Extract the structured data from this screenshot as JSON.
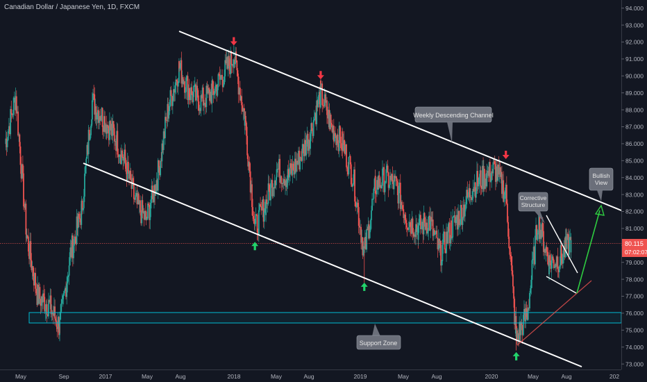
{
  "header": {
    "symbol_title": "Canadian Dollar / Japanese Yen, 1D, FXCM"
  },
  "colors": {
    "background": "#131722",
    "up_candle": "#26a69a",
    "down_candle": "#ef5350",
    "price_line": "#ef5350",
    "channel_lines": "#ffffff",
    "support_zone": "#00bcd4",
    "bullish_arrow": "#2ecc40",
    "callout_bg": "#6b6f7a",
    "callout_text": "#e6e6e6",
    "axis_text": "#b2b5be"
  },
  "price_tag": {
    "price": "80.115",
    "countdown": "07:02:07"
  },
  "annotations": {
    "weekly_channel": "Weekly Descending Channel",
    "corrective_line1": "Corrective",
    "corrective_line2": "Structure",
    "bullish_line1": "Bullish",
    "bullish_line2": "View",
    "support_zone": "Support Zone"
  },
  "chart_data": {
    "type": "candlestick",
    "title": "Canadian Dollar / Japanese Yen, 1D, FXCM",
    "current_price": 80.115,
    "y_range": [
      72.6,
      94.6
    ],
    "y_ticks": [
      "94.000",
      "93.000",
      "92.000",
      "91.000",
      "90.000",
      "89.000",
      "88.000",
      "87.000",
      "86.000",
      "85.000",
      "84.000",
      "83.000",
      "82.000",
      "81.000",
      "80.000",
      "79.000",
      "78.000",
      "77.000",
      "76.000",
      "75.000",
      "74.000",
      "73.000"
    ],
    "x_ticks": [
      "May",
      "Sep",
      "2017",
      "May",
      "Aug",
      "2018",
      "May",
      "Aug",
      "2019",
      "May",
      "Aug",
      "2020",
      "May",
      "Aug",
      "202"
    ],
    "price_path": [
      [
        "2016-04",
        86.0
      ],
      [
        "2016-05",
        88.8
      ],
      [
        "2016-06",
        80.5
      ],
      [
        "2016-07",
        77.0
      ],
      [
        "2016-08",
        76.5
      ],
      [
        "2016-09",
        75.2
      ],
      [
        "2016-10",
        79.5
      ],
      [
        "2016-11",
        82.0
      ],
      [
        "2016-12",
        88.5
      ],
      [
        "2017-01",
        87.5
      ],
      [
        "2017-02",
        86.5
      ],
      [
        "2017-03",
        85.0
      ],
      [
        "2017-04",
        82.5
      ],
      [
        "2017-05",
        81.5
      ],
      [
        "2017-06",
        84.0
      ],
      [
        "2017-07",
        88.0
      ],
      [
        "2017-08",
        90.5
      ],
      [
        "2017-09",
        89.0
      ],
      [
        "2017-10",
        88.5
      ],
      [
        "2017-11",
        89.0
      ],
      [
        "2017-12",
        90.0
      ],
      [
        "2018-01",
        91.2
      ],
      [
        "2018-02",
        87.5
      ],
      [
        "2018-03",
        81.0
      ],
      [
        "2018-04",
        82.5
      ],
      [
        "2018-05",
        84.5
      ],
      [
        "2018-06",
        84.0
      ],
      [
        "2018-07",
        85.0
      ],
      [
        "2018-08",
        86.5
      ],
      [
        "2018-09",
        89.0
      ],
      [
        "2018-10",
        87.0
      ],
      [
        "2018-11",
        86.0
      ],
      [
        "2018-12",
        84.0
      ],
      [
        "2019-01",
        79.5
      ],
      [
        "2019-02",
        83.5
      ],
      [
        "2019-03",
        84.0
      ],
      [
        "2019-04",
        83.5
      ],
      [
        "2019-05",
        81.5
      ],
      [
        "2019-06",
        81.0
      ],
      [
        "2019-07",
        81.5
      ],
      [
        "2019-08",
        79.5
      ],
      [
        "2019-09",
        81.0
      ],
      [
        "2019-10",
        82.0
      ],
      [
        "2019-11",
        83.5
      ],
      [
        "2019-12",
        84.0
      ],
      [
        "2020-01",
        84.5
      ],
      [
        "2020-02",
        83.0
      ],
      [
        "2020-03",
        74.5
      ],
      [
        "2020-04",
        76.0
      ],
      [
        "2020-05",
        81.5
      ],
      [
        "2020-06",
        79.0
      ],
      [
        "2020-07",
        79.2
      ],
      [
        "2020-08",
        80.3
      ]
    ],
    "markers": {
      "down_arrows": [
        [
          "2018-01",
          92.0
        ],
        [
          "2018-09",
          90.0
        ],
        [
          "2020-02",
          85.3
        ]
      ],
      "up_arrows": [
        [
          "2018-03",
          80.0
        ],
        [
          "2019-01",
          77.6
        ],
        [
          "2020-03",
          73.5
        ]
      ]
    },
    "support_zone": [
      75.3,
      75.9
    ]
  }
}
